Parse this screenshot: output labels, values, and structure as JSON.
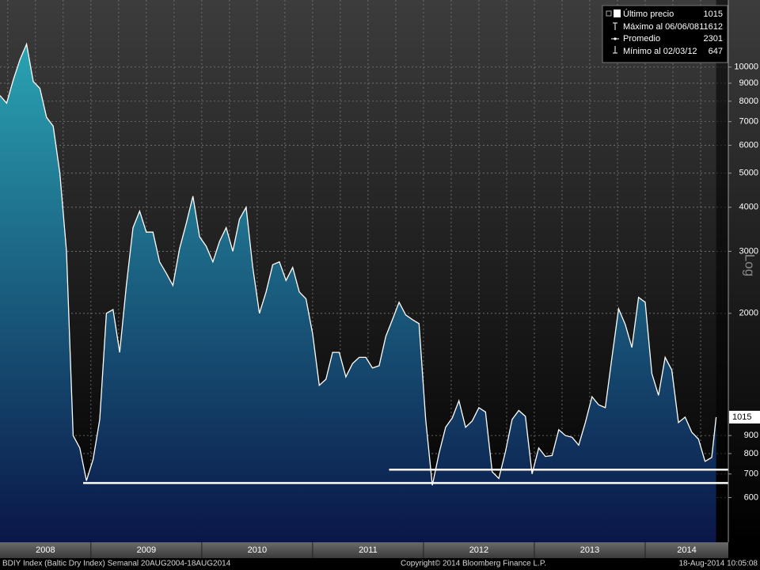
{
  "chart_data": {
    "type": "area",
    "log_scale": true,
    "grid": true,
    "color": "#ffffff",
    "fill_top": "#2aa3b3",
    "fill_bottom": "#0a1648",
    "axis_label": "Log",
    "x": [
      2008.18,
      2008.24,
      2008.3,
      2008.36,
      2008.42,
      2008.48,
      2008.54,
      2008.6,
      2008.66,
      2008.72,
      2008.78,
      2008.84,
      2008.9,
      2008.96,
      2009.02,
      2009.08,
      2009.14,
      2009.2,
      2009.26,
      2009.32,
      2009.38,
      2009.44,
      2009.5,
      2009.56,
      2009.62,
      2009.68,
      2009.74,
      2009.8,
      2009.86,
      2009.92,
      2009.98,
      2010.04,
      2010.1,
      2010.16,
      2010.22,
      2010.28,
      2010.34,
      2010.4,
      2010.46,
      2010.52,
      2010.58,
      2010.64,
      2010.7,
      2010.76,
      2010.82,
      2010.88,
      2010.94,
      2011.0,
      2011.06,
      2011.12,
      2011.18,
      2011.24,
      2011.3,
      2011.36,
      2011.42,
      2011.48,
      2011.54,
      2011.6,
      2011.66,
      2011.72,
      2011.78,
      2011.84,
      2011.9,
      2011.96,
      2012.02,
      2012.08,
      2012.14,
      2012.2,
      2012.26,
      2012.32,
      2012.38,
      2012.44,
      2012.5,
      2012.56,
      2012.62,
      2012.68,
      2012.74,
      2012.8,
      2012.86,
      2012.92,
      2012.98,
      2013.04,
      2013.1,
      2013.16,
      2013.22,
      2013.28,
      2013.34,
      2013.4,
      2013.46,
      2013.52,
      2013.58,
      2013.64,
      2013.7,
      2013.76,
      2013.82,
      2013.88,
      2013.94,
      2014.0,
      2014.06,
      2014.12,
      2014.18,
      2014.24,
      2014.3,
      2014.36,
      2014.42,
      2014.48,
      2014.54,
      2014.6,
      2014.64
    ],
    "values": [
      8300,
      7900,
      9200,
      10500,
      11612,
      9100,
      8700,
      7200,
      6800,
      5000,
      3000,
      900,
      830,
      670,
      770,
      1000,
      2000,
      2050,
      1550,
      2400,
      3500,
      3900,
      3400,
      3400,
      2800,
      2600,
      2400,
      3050,
      3600,
      4300,
      3300,
      3100,
      2800,
      3200,
      3500,
      3000,
      3700,
      4000,
      2700,
      2000,
      2300,
      2750,
      2800,
      2480,
      2700,
      2300,
      2200,
      1750,
      1250,
      1300,
      1550,
      1550,
      1320,
      1440,
      1500,
      1500,
      1400,
      1420,
      1720,
      1920,
      2150,
      1980,
      1920,
      1870,
      1000,
      650,
      800,
      950,
      1010,
      1130,
      950,
      990,
      1080,
      1050,
      710,
      680,
      810,
      1000,
      1060,
      1020,
      700,
      830,
      785,
      790,
      935,
      900,
      890,
      845,
      980,
      1160,
      1100,
      1080,
      1500,
      2060,
      1860,
      1600,
      2220,
      2150,
      1350,
      1170,
      1500,
      1380,
      980,
      1015,
      920,
      880,
      760,
      780,
      1015
    ],
    "xlim": [
      2008.18,
      2014.75
    ],
    "ylim": [
      448,
      15500
    ],
    "yticks": [
      600,
      700,
      800,
      900,
      2000,
      3000,
      4000,
      5000,
      6000,
      7000,
      8000,
      9000,
      10000
    ],
    "categories": [
      "2008",
      "2009",
      "2010",
      "2011",
      "2012",
      "2013",
      "2014"
    ],
    "reference_lines": [
      {
        "value": 660,
        "x": [
          2008.93,
          2014.75
        ]
      },
      {
        "value": 720,
        "x": [
          2011.69,
          2014.75
        ]
      }
    ],
    "legend": [
      {
        "label": "Último precio",
        "value": 1015
      },
      {
        "label": "Máximo al 06/06/08",
        "value": 11612
      },
      {
        "label": "Promedio",
        "value": 2301
      },
      {
        "label": "Mínimo al 02/03/12",
        "value": 647
      }
    ],
    "footer": {
      "left": "BDIY Index (Baltic Dry Index)  Semanal 20AUG2004-18AUG2014",
      "center": "Copyright© 2014 Bloomberg Finance L.P.",
      "right": "18-Aug-2014 10:05:08"
    }
  }
}
